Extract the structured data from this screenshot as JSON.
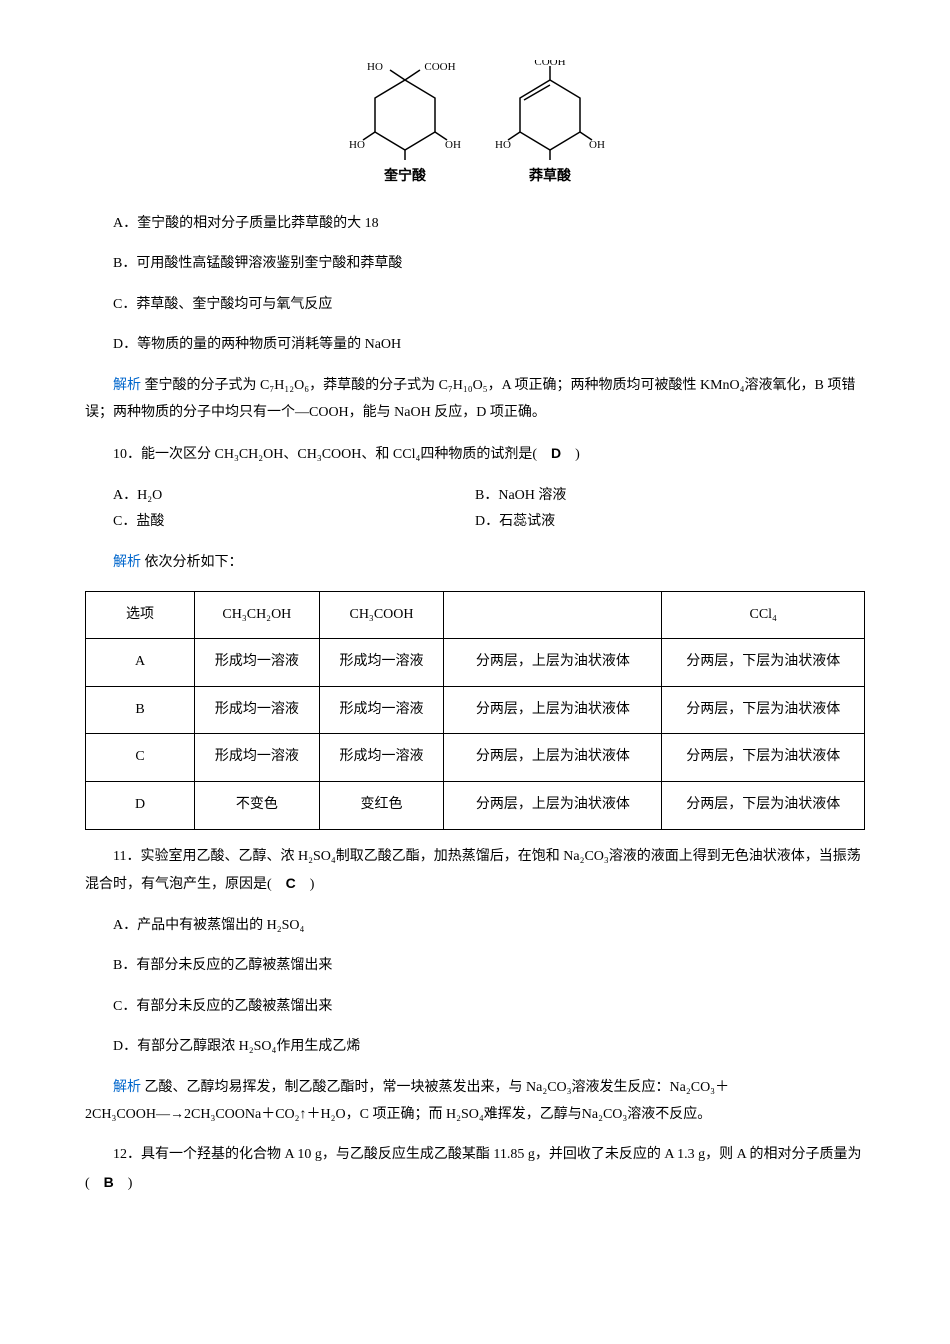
{
  "molecules": {
    "quinic": {
      "top_left": "HO",
      "top_right": "COOH",
      "left": "HO",
      "right": "OH",
      "bottom": "OH",
      "label": "奎宁酸"
    },
    "shikimic": {
      "top": "COOH",
      "left": "HO",
      "right": "OH",
      "bottom": "OH",
      "label": "莽草酸"
    }
  },
  "q9": {
    "optA": "A．奎宁酸的相对分子质量比莽草酸的大 18",
    "optB": "B．可用酸性高锰酸钾溶液鉴别奎宁酸和莽草酸",
    "optC": "C．莽草酸、奎宁酸均可与氧气反应",
    "optD": "D．等物质的量的两种物质可消耗等量的 NaOH",
    "exp_label": "解析",
    "exp_text": " 奎宁酸的分子式为 C₇H₁₂O₆，莽草酸的分子式为 C₇H₁₀O₅，A 项正确；两种物质均可被酸性 KMnO₄溶液氧化，B 项错误；两种物质的分子中均只有一个—COOH，能与 NaOH 反应，D 项正确。"
  },
  "q10": {
    "stem_prefix": "10．能一次区分 CH₃CH₂OH、CH₃COOH、",
    "stem_suffix": "和 CCl₄四种物质的试剂是(　",
    "answer": "D",
    "stem_end": "　)",
    "optA": "A．H₂O",
    "optB": "B．NaOH 溶液",
    "optC": "C．盐酸",
    "optD": "D．石蕊试液",
    "exp_label": "解析",
    "exp_text": " 依次分析如下：",
    "table": {
      "headers": [
        "选项",
        "CH₃CH₂OH",
        "CH₃COOH",
        "",
        "CCl₄"
      ],
      "rows": [
        [
          "A",
          "形成均一溶液",
          "形成均一溶液",
          "分两层，上层为油状液体",
          "分两层，下层为油状液体"
        ],
        [
          "B",
          "形成均一溶液",
          "形成均一溶液",
          "分两层，上层为油状液体",
          "分两层，下层为油状液体"
        ],
        [
          "C",
          "形成均一溶液",
          "形成均一溶液",
          "分两层，上层为油状液体",
          "分两层，下层为油状液体"
        ],
        [
          "D",
          "不变色",
          "变红色",
          "分两层，上层为油状液体",
          "分两层，下层为油状液体"
        ]
      ],
      "col_widths": [
        "14%",
        "16%",
        "16%",
        "28%",
        "26%"
      ]
    }
  },
  "q11": {
    "stem": "11．实验室用乙酸、乙醇、浓 H₂SO₄制取乙酸乙酯，加热蒸馏后，在饱和 Na₂CO₃溶液的液面上得到无色油状液体，当振荡混合时，有气泡产生，原因是(　",
    "answer": "C",
    "stem_end": "　)",
    "optA": "A．产品中有被蒸馏出的 H₂SO₄",
    "optB": "B．有部分未反应的乙醇被蒸馏出来",
    "optC": "C．有部分未反应的乙酸被蒸馏出来",
    "optD": "D．有部分乙醇跟浓 H₂SO₄作用生成乙烯",
    "exp_label": "解析",
    "exp_text": " 乙酸、乙醇均易挥发，制乙酸乙酯时，常一块被蒸发出来，与 Na₂CO₃溶液发生反应：Na₂CO₃＋2CH₃COOH―→2CH₃COONa＋CO₂↑＋H₂O，C 项正确；而 H₂SO₄难挥发，乙醇与Na₂CO₃溶液不反应。"
  },
  "q12": {
    "stem": "12．具有一个羟基的化合物 A 10 g，与乙酸反应生成乙酸某酯 11.85 g，并回收了未反应的 A 1.3 g，则 A 的相对分子质量为(　",
    "answer": "B",
    "stem_end": "　)"
  }
}
